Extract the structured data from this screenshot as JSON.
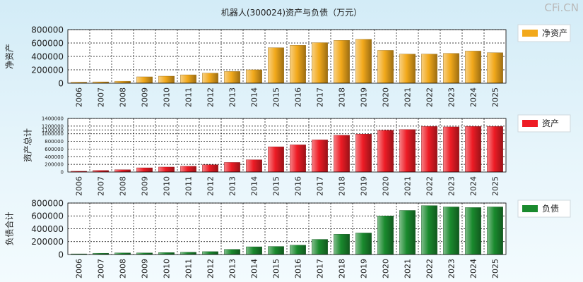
{
  "page": {
    "title": "机器人(300024)资产与负债（万元）",
    "watermark": "CFi.CN"
  },
  "chart_data": [
    {
      "type": "bar",
      "ylabel": "净资产",
      "legend": "净资产",
      "legend_position": "right",
      "grid": true,
      "ylim": [
        0,
        800000
      ],
      "yticks": [
        0,
        200000,
        400000,
        600000,
        800000
      ],
      "ytick_labels": [
        "0",
        "200000",
        "400000",
        "600000",
        "800000"
      ],
      "color": "#f2a91b",
      "categories": [
        "2006",
        "2007",
        "2008",
        "2009",
        "2010",
        "2011",
        "2012",
        "2013",
        "2014",
        "2015",
        "2016",
        "2017",
        "2018",
        "2019",
        "2020",
        "2021",
        "2022",
        "2023",
        "2024",
        "2025"
      ],
      "values": [
        15000,
        20000,
        30000,
        95000,
        105000,
        125000,
        150000,
        175000,
        200000,
        530000,
        565000,
        605000,
        640000,
        655000,
        490000,
        435000,
        435000,
        445000,
        480000,
        455000
      ]
    },
    {
      "type": "bar",
      "ylabel": "资产总计",
      "legend": "资产",
      "legend_position": "right",
      "grid": true,
      "ylim": [
        0,
        1400000
      ],
      "yticks": [
        0,
        200000,
        400000,
        600000,
        800000,
        1000000,
        1100000,
        1200000,
        1400000
      ],
      "ytick_labels": [
        "0",
        "200000",
        "400000",
        "600000",
        "800000",
        "1000000",
        "1100000",
        "1200000",
        "1400000"
      ],
      "color": "#ee1c25",
      "categories": [
        "2006",
        "2007",
        "2008",
        "2009",
        "2010",
        "2011",
        "2012",
        "2013",
        "2014",
        "2015",
        "2016",
        "2017",
        "2018",
        "2019",
        "2020",
        "2021",
        "2022",
        "2023",
        "2024",
        "2025"
      ],
      "values": [
        20000,
        40000,
        60000,
        110000,
        130000,
        150000,
        190000,
        250000,
        320000,
        660000,
        710000,
        840000,
        960000,
        990000,
        1090000,
        1110000,
        1190000,
        1180000,
        1190000,
        1190000
      ]
    },
    {
      "type": "bar",
      "ylabel": "负债合计",
      "legend": "负债",
      "legend_position": "right",
      "grid": true,
      "ylim": [
        0,
        800000
      ],
      "yticks": [
        0,
        200000,
        400000,
        600000,
        800000
      ],
      "ytick_labels": [
        "0",
        "200000",
        "400000",
        "600000",
        "800000"
      ],
      "color": "#1a8a2e",
      "categories": [
        "2006",
        "2007",
        "2008",
        "2009",
        "2010",
        "2011",
        "2012",
        "2013",
        "2014",
        "2015",
        "2016",
        "2017",
        "2018",
        "2019",
        "2020",
        "2021",
        "2022",
        "2023",
        "2024",
        "2025"
      ],
      "values": [
        10000,
        20000,
        25000,
        25000,
        30000,
        35000,
        45000,
        80000,
        120000,
        125000,
        145000,
        235000,
        315000,
        335000,
        600000,
        685000,
        760000,
        740000,
        730000,
        740000
      ]
    }
  ]
}
